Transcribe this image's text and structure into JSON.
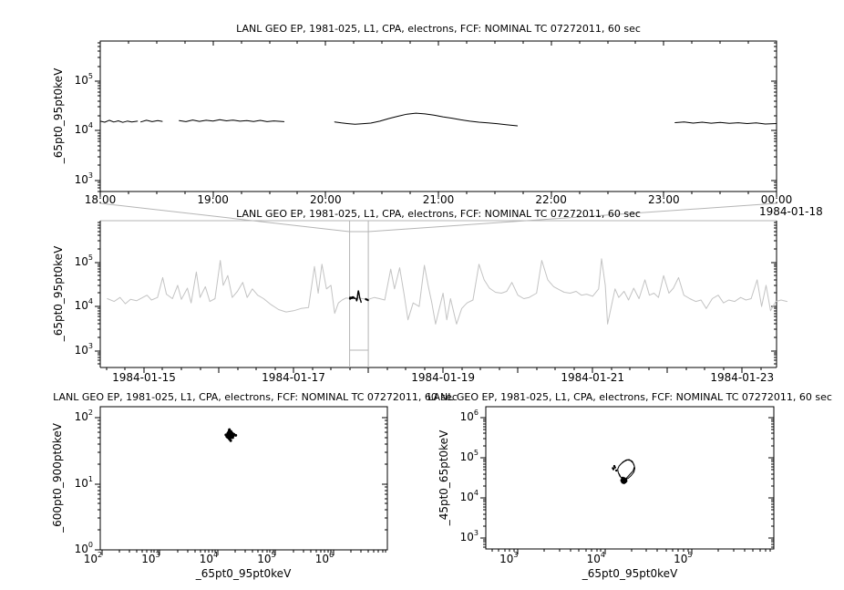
{
  "title": "LANL GEO EP, 1981-025, L1, CPA, electrons, FCF: NOMINAL TC 07272011, 60 sec",
  "tick_base": "10",
  "colors": {
    "foreground": "#000000",
    "context_series": "#c3c3c3",
    "connector": "#b5b5b5",
    "background": "#ffffff"
  },
  "chart_data": [
    {
      "id": "zoom-detail-timeseries",
      "type": "line",
      "title": "LANL GEO EP, 1981-025, L1, CPA, electrons, FCF: NOMINAL TC 07272011, 60 sec",
      "ylabel": "_65pt0_95pt0keV",
      "y_tick_exponents": [
        3,
        4,
        5
      ],
      "x_tick_labels": [
        "18:00",
        "19:00",
        "20:00",
        "21:00",
        "22:00",
        "23:00",
        "00:00"
      ],
      "x_tick_hours": [
        18,
        19,
        20,
        21,
        22,
        23,
        24
      ],
      "x_date_label": "1984-01-18",
      "xlim_hours": [
        18,
        24
      ],
      "ylim_log": [
        2.77,
        5.81
      ],
      "grid": false,
      "segments": [
        [
          [
            18.0,
            15500
          ],
          [
            18.04,
            14800
          ],
          [
            18.08,
            16200
          ],
          [
            18.12,
            14900
          ],
          [
            18.16,
            15800
          ],
          [
            18.2,
            14700
          ],
          [
            18.24,
            15600
          ],
          [
            18.28,
            15000
          ],
          [
            18.33,
            15500
          ]
        ],
        [
          [
            18.36,
            15000
          ],
          [
            18.41,
            16200
          ],
          [
            18.46,
            15200
          ],
          [
            18.51,
            15900
          ],
          [
            18.55,
            15400
          ]
        ],
        [
          [
            18.7,
            16000
          ],
          [
            18.76,
            15200
          ],
          [
            18.82,
            16400
          ],
          [
            18.88,
            15400
          ],
          [
            18.94,
            16200
          ],
          [
            19.0,
            15600
          ],
          [
            19.06,
            16600
          ],
          [
            19.12,
            15800
          ],
          [
            19.18,
            16300
          ],
          [
            19.24,
            15500
          ],
          [
            19.3,
            16000
          ],
          [
            19.36,
            15300
          ],
          [
            19.42,
            16100
          ],
          [
            19.48,
            15200
          ],
          [
            19.54,
            15700
          ],
          [
            19.63,
            15200
          ]
        ],
        [
          [
            20.08,
            15000
          ],
          [
            20.14,
            14300
          ],
          [
            20.2,
            13800
          ],
          [
            20.26,
            13400
          ],
          [
            20.32,
            13700
          ],
          [
            20.4,
            14200
          ],
          [
            20.48,
            15500
          ],
          [
            20.56,
            17500
          ],
          [
            20.64,
            19500
          ],
          [
            20.72,
            21500
          ],
          [
            20.8,
            22500
          ],
          [
            20.88,
            21800
          ],
          [
            20.96,
            20500
          ],
          [
            21.04,
            19000
          ],
          [
            21.12,
            17800
          ],
          [
            21.2,
            16500
          ],
          [
            21.28,
            15500
          ],
          [
            21.36,
            14800
          ],
          [
            21.44,
            14300
          ],
          [
            21.52,
            13800
          ],
          [
            21.6,
            13200
          ],
          [
            21.7,
            12500
          ]
        ],
        [
          [
            23.1,
            14500
          ],
          [
            23.18,
            15000
          ],
          [
            23.26,
            14200
          ],
          [
            23.34,
            14800
          ],
          [
            23.42,
            14100
          ],
          [
            23.5,
            14600
          ],
          [
            23.58,
            14000
          ],
          [
            23.66,
            14400
          ],
          [
            23.74,
            13900
          ],
          [
            23.82,
            14300
          ],
          [
            23.9,
            13600
          ],
          [
            24.0,
            13900
          ]
        ]
      ]
    },
    {
      "id": "context-overview-timeseries",
      "type": "line",
      "title": "LANL GEO EP, 1981-025, L1, CPA, electrons, FCF: NOMINAL TC 07272011, 60 sec",
      "ylabel": "_65pt0_95pt0keV",
      "y_tick_exponents": [
        3,
        4,
        5
      ],
      "x_tick_labels": [
        "1984-01-15",
        "1984-01-17",
        "1984-01-19",
        "1984-01-21",
        "1984-01-23"
      ],
      "x_label_days": [
        15,
        17,
        19,
        21,
        23
      ],
      "x_major_days": [
        15,
        16,
        17,
        18,
        19,
        20,
        21,
        22,
        23
      ],
      "xlim_days": [
        14.415,
        23.46
      ],
      "ylim_log": [
        2.62,
        5.94
      ],
      "zoom_region_days": [
        17.75,
        18.0
      ],
      "grid": false,
      "points": [
        [
          14.51,
          15000
        ],
        [
          14.6,
          13000
        ],
        [
          14.68,
          16000
        ],
        [
          14.75,
          11500
        ],
        [
          14.82,
          14500
        ],
        [
          14.9,
          13500
        ],
        [
          14.97,
          15500
        ],
        [
          15.04,
          18000
        ],
        [
          15.1,
          14000
        ],
        [
          15.18,
          16000
        ],
        [
          15.25,
          45000
        ],
        [
          15.3,
          19000
        ],
        [
          15.38,
          15000
        ],
        [
          15.45,
          30000
        ],
        [
          15.5,
          14500
        ],
        [
          15.58,
          26000
        ],
        [
          15.63,
          12000
        ],
        [
          15.7,
          60000
        ],
        [
          15.75,
          16000
        ],
        [
          15.82,
          28000
        ],
        [
          15.88,
          13000
        ],
        [
          15.95,
          15000
        ],
        [
          16.02,
          110000
        ],
        [
          16.06,
          30000
        ],
        [
          16.12,
          50000
        ],
        [
          16.18,
          16000
        ],
        [
          16.25,
          22000
        ],
        [
          16.32,
          35000
        ],
        [
          16.38,
          16000
        ],
        [
          16.45,
          25000
        ],
        [
          16.52,
          18000
        ],
        [
          16.6,
          15000
        ],
        [
          16.7,
          11000
        ],
        [
          16.8,
          8500
        ],
        [
          16.9,
          7500
        ],
        [
          17.0,
          8000
        ],
        [
          17.1,
          9000
        ],
        [
          17.2,
          9500
        ],
        [
          17.28,
          80000
        ],
        [
          17.33,
          20000
        ],
        [
          17.38,
          90000
        ],
        [
          17.44,
          25000
        ],
        [
          17.5,
          30000
        ],
        [
          17.55,
          7000
        ],
        [
          17.6,
          12000
        ],
        [
          17.65,
          14000
        ],
        [
          17.7,
          15500
        ],
        [
          17.78,
          15000
        ],
        [
          17.85,
          16000
        ],
        [
          17.92,
          15000
        ],
        [
          18.0,
          14500
        ],
        [
          18.08,
          16000
        ],
        [
          18.15,
          15000
        ],
        [
          18.22,
          14000
        ],
        [
          18.3,
          70000
        ],
        [
          18.35,
          25000
        ],
        [
          18.42,
          75000
        ],
        [
          18.48,
          18000
        ],
        [
          18.53,
          5000
        ],
        [
          18.6,
          12000
        ],
        [
          18.68,
          10000
        ],
        [
          18.75,
          85000
        ],
        [
          18.8,
          30000
        ],
        [
          18.85,
          12000
        ],
        [
          18.9,
          4000
        ],
        [
          18.95,
          9000
        ],
        [
          19.0,
          20000
        ],
        [
          19.05,
          5000
        ],
        [
          19.1,
          15000
        ],
        [
          19.18,
          4000
        ],
        [
          19.25,
          9000
        ],
        [
          19.32,
          12000
        ],
        [
          19.4,
          14000
        ],
        [
          19.48,
          90000
        ],
        [
          19.55,
          40000
        ],
        [
          19.62,
          26000
        ],
        [
          19.7,
          21000
        ],
        [
          19.78,
          20000
        ],
        [
          19.85,
          22000
        ],
        [
          19.92,
          35000
        ],
        [
          20.0,
          18000
        ],
        [
          20.08,
          15000
        ],
        [
          20.15,
          16000
        ],
        [
          20.25,
          20000
        ],
        [
          20.32,
          110000
        ],
        [
          20.4,
          40000
        ],
        [
          20.48,
          28000
        ],
        [
          20.55,
          24000
        ],
        [
          20.62,
          21000
        ],
        [
          20.7,
          20000
        ],
        [
          20.78,
          22000
        ],
        [
          20.85,
          18000
        ],
        [
          20.92,
          19000
        ],
        [
          21.0,
          17000
        ],
        [
          21.08,
          25000
        ],
        [
          21.12,
          120000
        ],
        [
          21.17,
          30000
        ],
        [
          21.2,
          4000
        ],
        [
          21.25,
          10000
        ],
        [
          21.3,
          25000
        ],
        [
          21.35,
          16000
        ],
        [
          21.42,
          22000
        ],
        [
          21.48,
          14000
        ],
        [
          21.55,
          26000
        ],
        [
          21.62,
          15000
        ],
        [
          21.7,
          40000
        ],
        [
          21.76,
          18000
        ],
        [
          21.82,
          20000
        ],
        [
          21.88,
          16000
        ],
        [
          21.95,
          50000
        ],
        [
          22.02,
          20000
        ],
        [
          22.08,
          26000
        ],
        [
          22.15,
          45000
        ],
        [
          22.22,
          18000
        ],
        [
          22.3,
          15000
        ],
        [
          22.38,
          13000
        ],
        [
          22.45,
          14000
        ],
        [
          22.52,
          9000
        ],
        [
          22.6,
          15000
        ],
        [
          22.68,
          18000
        ],
        [
          22.75,
          12000
        ],
        [
          22.82,
          14000
        ],
        [
          22.9,
          13000
        ],
        [
          22.98,
          16000
        ],
        [
          23.05,
          14000
        ],
        [
          23.12,
          15000
        ],
        [
          23.2,
          40000
        ],
        [
          23.26,
          10000
        ],
        [
          23.32,
          30000
        ],
        [
          23.38,
          8000
        ],
        [
          23.45,
          13000
        ],
        [
          23.52,
          14000
        ],
        [
          23.6,
          13000
        ]
      ]
    },
    {
      "id": "scatter-600-900-vs-65-95",
      "type": "scatter",
      "title": "LANL GEO EP, 1981-025, L1, CPA, electrons, FCF: NOMINAL TC 07272011, 60 sec",
      "xlabel": "_65pt0_95pt0keV",
      "ylabel": "_600pt0_900pt0keV",
      "x_tick_exponents": [
        2,
        3,
        4,
        5,
        6
      ],
      "y_tick_exponents": [
        0,
        1,
        2
      ],
      "xlim_log": [
        1.97,
        6.93
      ],
      "ylim_log": [
        0,
        2.166
      ],
      "grid": false,
      "points": [
        [
          15500,
          55
        ],
        [
          16800,
          52
        ],
        [
          17900,
          58
        ],
        [
          15100,
          50
        ],
        [
          16300,
          61
        ],
        [
          14400,
          54
        ],
        [
          18500,
          53
        ],
        [
          16100,
          47
        ],
        [
          15700,
          63
        ],
        [
          17200,
          56
        ],
        [
          14900,
          58
        ],
        [
          18100,
          50
        ],
        [
          16000,
          57
        ],
        [
          15200,
          52
        ],
        [
          17000,
          54
        ],
        [
          19000,
          56
        ],
        [
          14600,
          51
        ],
        [
          16500,
          60
        ],
        [
          15400,
          55
        ],
        [
          17600,
          52
        ],
        [
          16200,
          49
        ],
        [
          15000,
          57
        ],
        [
          17400,
          59
        ],
        [
          15800,
          48
        ],
        [
          18300,
          55
        ],
        [
          16900,
          62
        ],
        [
          14700,
          53
        ],
        [
          17100,
          50
        ],
        [
          15600,
          58
        ],
        [
          17800,
          56
        ],
        [
          14300,
          52
        ],
        [
          16600,
          54
        ],
        [
          15300,
          60
        ],
        [
          18000,
          51
        ],
        [
          16400,
          53
        ],
        [
          15900,
          66
        ],
        [
          16700,
          45
        ],
        [
          13800,
          55
        ],
        [
          20500,
          54
        ],
        [
          16000,
          54
        ]
      ]
    },
    {
      "id": "scatter-45-65-vs-65-95",
      "type": "scatter",
      "title": "LANL GEO EP, 1981-025, L1, CPA, electrons, FCF: NOMINAL TC 07272011, 60 sec",
      "xlabel": "_65pt0_95pt0keV",
      "ylabel": "_45pt0_65pt0keV",
      "x_tick_exponents": [
        3,
        4,
        5
      ],
      "y_tick_exponents": [
        3,
        4,
        5,
        6
      ],
      "xlim_log": [
        2.63,
        5.94
      ],
      "ylim_log": [
        2.73,
        6.27
      ],
      "grid": false,
      "loop_points": [
        [
          14500,
          62000
        ],
        [
          16000,
          78000
        ],
        [
          17500,
          88000
        ],
        [
          19000,
          90000
        ],
        [
          20500,
          82000
        ],
        [
          21500,
          68000
        ],
        [
          22000,
          55000
        ],
        [
          21500,
          44000
        ],
        [
          20000,
          36000
        ],
        [
          18500,
          31000
        ],
        [
          17000,
          28500
        ],
        [
          15800,
          30000
        ],
        [
          14800,
          35000
        ],
        [
          14200,
          43000
        ],
        [
          14000,
          52000
        ],
        [
          14500,
          62000
        ],
        [
          15200,
          70000
        ],
        [
          16500,
          80000
        ],
        [
          18000,
          88000
        ],
        [
          19500,
          86000
        ],
        [
          21000,
          74000
        ],
        [
          21800,
          60000
        ],
        [
          21000,
          47000
        ],
        [
          19200,
          38000
        ],
        [
          17500,
          30500
        ],
        [
          16200,
          28000
        ],
        [
          15300,
          32000
        ],
        [
          14500,
          40000
        ]
      ],
      "blob_points": [
        [
          16000,
          27000
        ],
        [
          16800,
          26000
        ],
        [
          17200,
          28000
        ],
        [
          15800,
          25500
        ],
        [
          16400,
          29000
        ],
        [
          17000,
          25000
        ],
        [
          16200,
          26500
        ],
        [
          16700,
          30000
        ],
        [
          15600,
          27500
        ],
        [
          17400,
          26500
        ],
        [
          16100,
          24500
        ],
        [
          16900,
          28500
        ],
        [
          16300,
          25800
        ],
        [
          15900,
          29500
        ],
        [
          17100,
          27200
        ],
        [
          16500,
          24000
        ],
        [
          16000,
          31000
        ],
        [
          16600,
          26800
        ]
      ],
      "tail_points": [
        [
          12500,
          52000
        ],
        [
          13000,
          57000
        ],
        [
          12800,
          62000
        ],
        [
          13500,
          48000
        ],
        [
          12300,
          55000
        ]
      ]
    }
  ]
}
